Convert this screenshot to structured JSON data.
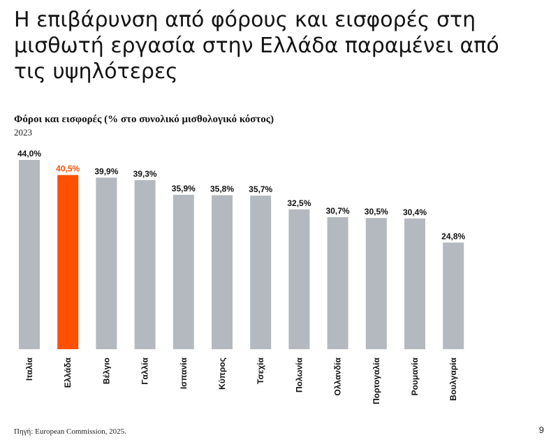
{
  "headline": "Η επιβάρυνση από φόρους και εισφορές στη μισθωτή εργασία στην Ελλάδα παραμένει από τις υψηλότερες",
  "footer": {
    "source": "Πηγή: European Commission, 2025.",
    "page_number": "9"
  },
  "colors": {
    "default_bar": "#b4b9bf",
    "highlight_bar": "#fe5000",
    "highlight_label": "#fe5000"
  },
  "chart_data": {
    "type": "bar",
    "title": "Φόροι και εισφορές (% στο συνολικό μισθολογικό κόστος)",
    "subtitle": "2023",
    "categories": [
      "Ιταλία",
      "Ελλάδα",
      "Βέλγιο",
      "Γαλλία",
      "Ισπανία",
      "Κύπρος",
      "Τσεχία",
      "Πολωνία",
      "Ολλανδία",
      "Πορτογαλία",
      "Ρουμανία",
      "Βουλγαρία"
    ],
    "values": [
      44.0,
      40.5,
      39.9,
      39.3,
      35.9,
      35.8,
      35.7,
      32.5,
      30.7,
      30.5,
      30.4,
      24.8
    ],
    "value_labels": [
      "44,0%",
      "40,5%",
      "39,9%",
      "39,3%",
      "35,9%",
      "35,8%",
      "35,7%",
      "32,5%",
      "30,7%",
      "30,5%",
      "30,4%",
      "24,8%"
    ],
    "highlight": "Ελλάδα",
    "ylim": [
      0,
      44
    ],
    "grid": false,
    "legend": "none",
    "xlabel": "",
    "ylabel": ""
  }
}
